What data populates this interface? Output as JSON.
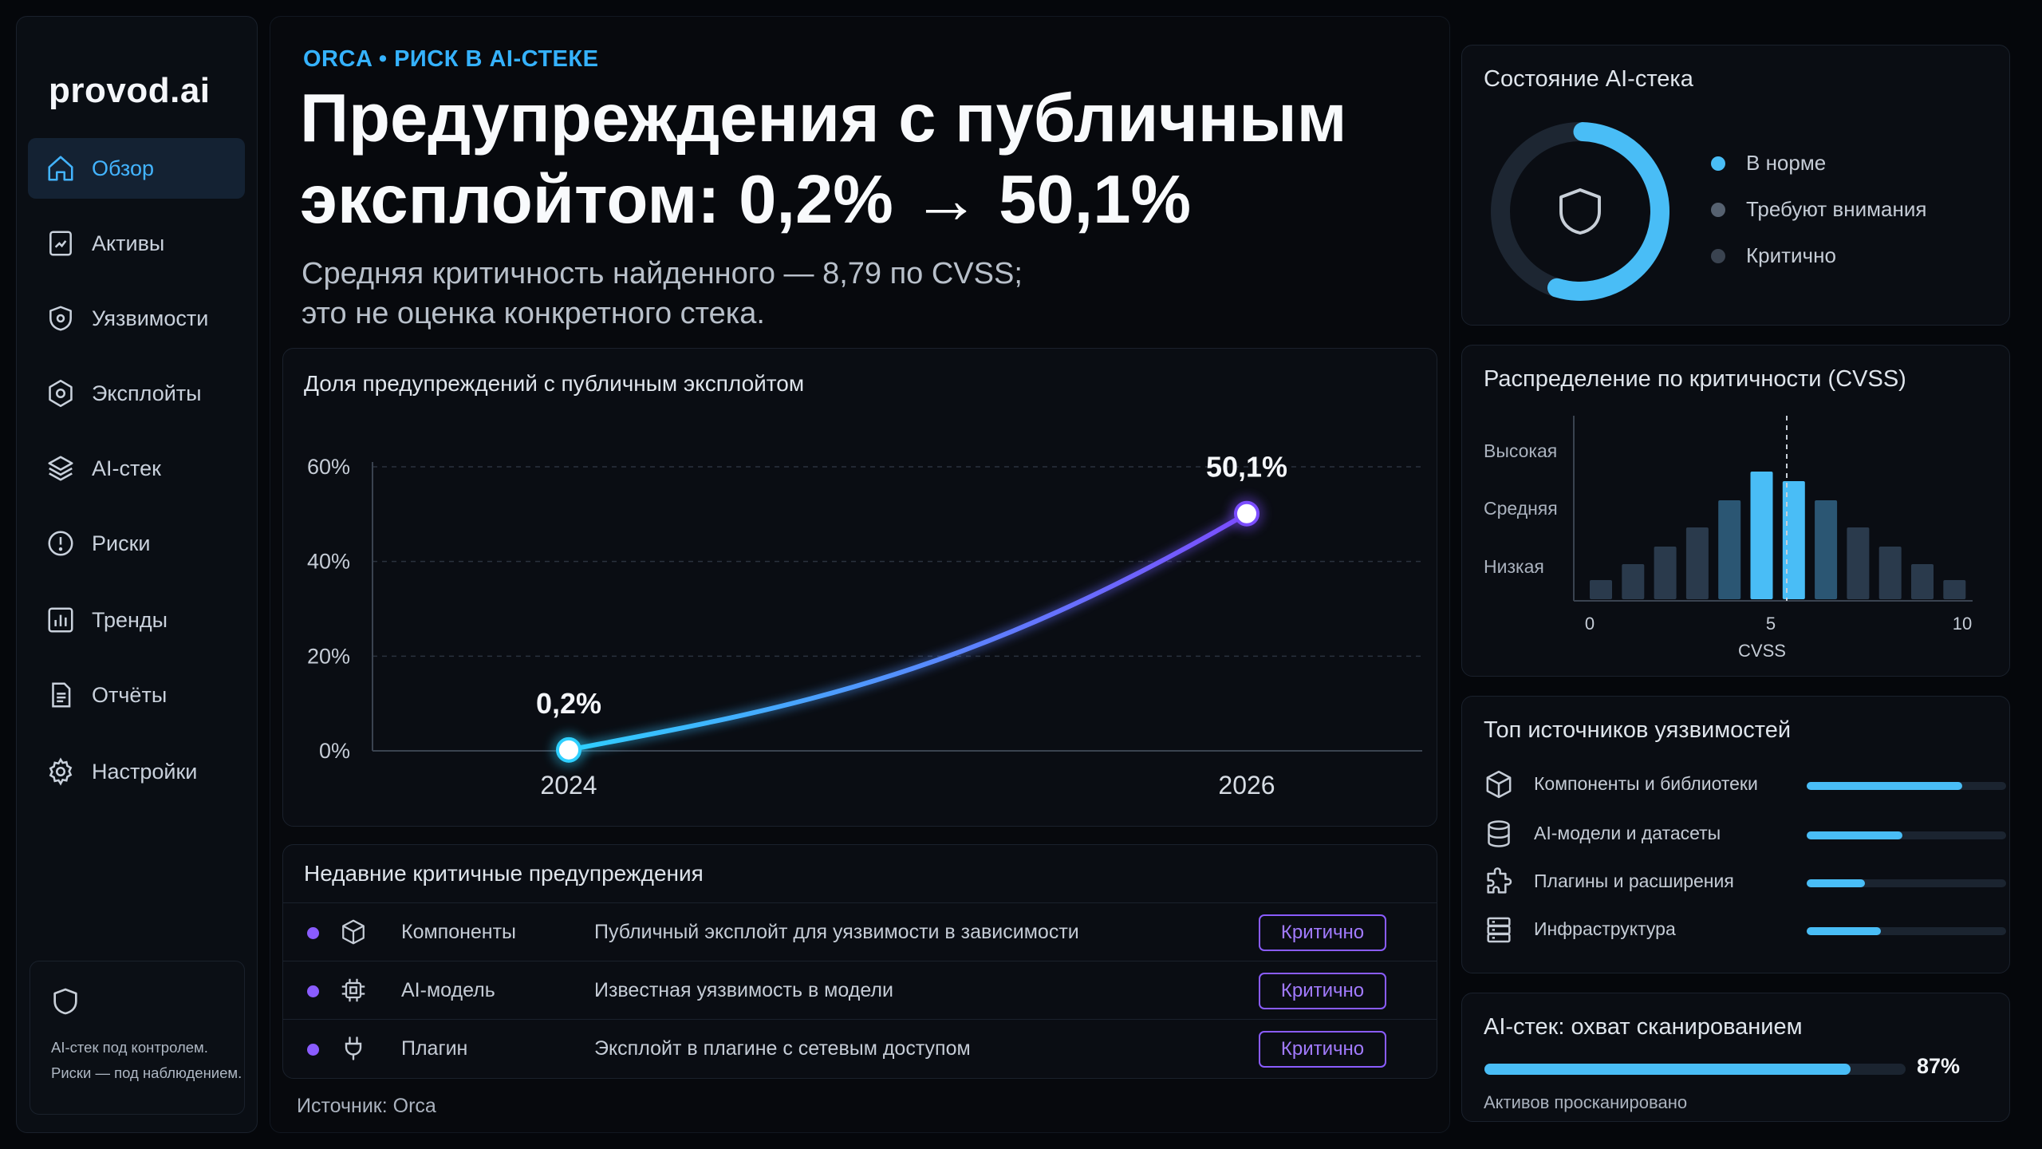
{
  "app": {
    "logo": "provod.ai"
  },
  "sidebar": {
    "items": [
      {
        "label": "Обзор",
        "icon": "home-icon",
        "active": true
      },
      {
        "label": "Активы",
        "icon": "assets-icon",
        "active": false
      },
      {
        "label": "Уязвимости",
        "icon": "shield-icon",
        "active": false
      },
      {
        "label": "Эксплойты",
        "icon": "exploit-icon",
        "active": false
      },
      {
        "label": "AI-стек",
        "icon": "layers-icon",
        "active": false
      },
      {
        "label": "Риски",
        "icon": "alert-icon",
        "active": false
      },
      {
        "label": "Тренды",
        "icon": "trend-icon",
        "active": false
      },
      {
        "label": "Отчёты",
        "icon": "report-icon",
        "active": false
      },
      {
        "label": "Настройки",
        "icon": "gear-icon",
        "active": false
      }
    ],
    "note": {
      "line1": "AI-стек под контролем.",
      "line2": "Риски — под наблюдением."
    }
  },
  "header": {
    "eyebrow": "ORCA • РИСК В AI-СТЕКЕ",
    "headline_line1": "Предупреждения с публичным",
    "headline_line2": "эксплойтом: 0,2% → 50,1%",
    "sub_line1": "Средняя критичность найденного — 8,79 по CVSS;",
    "sub_line2": "это не оценка конкретного стека."
  },
  "chart_data": {
    "type": "line",
    "title": "Доля предупреждений с публичным эксплойтом",
    "x": [
      "2024",
      "2026"
    ],
    "series": [
      {
        "values": [
          0.2,
          50.1
        ]
      }
    ],
    "data_labels": [
      "0,2%",
      "50,1%"
    ],
    "yticks": [
      "0%",
      "20%",
      "40%",
      "60%"
    ],
    "ylim": [
      0,
      60
    ],
    "grid": true,
    "colors": {
      "start": "#2fd0ff",
      "end": "#7b4dff"
    }
  },
  "alerts": {
    "title": "Недавние критичные предупреждения",
    "rows": [
      {
        "icon": "cube-icon",
        "category": "Компоненты",
        "description": "Публичный эксплойт для уязвимости в зависимости",
        "badge": "Критично"
      },
      {
        "icon": "chip-icon",
        "category": "AI-модель",
        "description": "Известная уязвимость в модели",
        "badge": "Критично"
      },
      {
        "icon": "plug-icon",
        "category": "Плагин",
        "description": "Эксплойт в плагине с сетевым доступом",
        "badge": "Критично"
      }
    ]
  },
  "source": "Источник: Orca",
  "status": {
    "title": "Состояние AI-стека",
    "legend": [
      {
        "label": "В норме",
        "color": "#49bdf6"
      },
      {
        "label": "Требуют внимания",
        "color": "#566170"
      },
      {
        "label": "Критично",
        "color": "#3a4350"
      }
    ]
  },
  "distribution": {
    "title": "Распределение по критичности (CVSS)",
    "levels": [
      "Высокая",
      "Средняя",
      "Низкая"
    ],
    "xticks": [
      "0",
      "5",
      "10"
    ],
    "xlabel": "CVSS"
  },
  "sources": {
    "title": "Топ источников уязвимостей",
    "items": [
      {
        "label": "Компоненты и библиотеки",
        "icon": "cube-icon",
        "fraction": 0.78
      },
      {
        "label": "AI-модели и датасеты",
        "icon": "database-icon",
        "fraction": 0.48
      },
      {
        "label": "Плагины и расширения",
        "icon": "puzzle-icon",
        "fraction": 0.29
      },
      {
        "label": "Инфраструктура",
        "icon": "server-icon",
        "fraction": 0.37
      }
    ]
  },
  "coverage": {
    "title": "AI-стек: охват сканированием",
    "percent": "87%",
    "fraction": 0.87,
    "caption": "Активов просканировано"
  }
}
